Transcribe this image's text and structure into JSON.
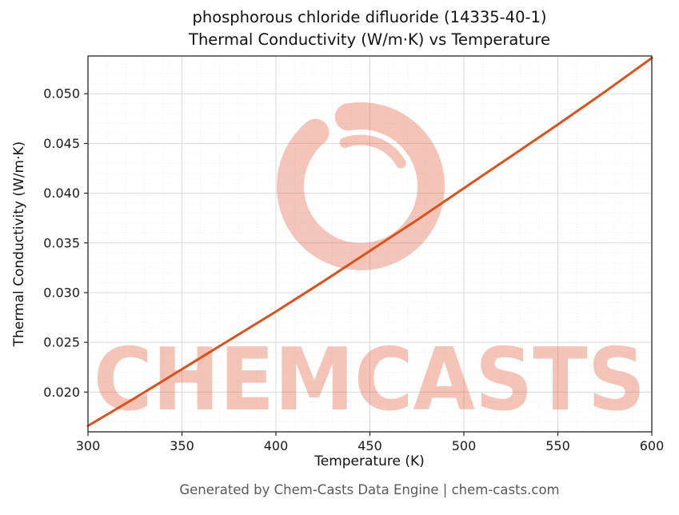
{
  "page": {
    "title_line1": "phosphorous chloride difluoride (14335-40-1)",
    "title_line2": "Thermal Conductivity (W/m·K) vs Temperature",
    "footer": "Generated by Chem-Casts Data Engine | chem-casts.com"
  },
  "watermark": {
    "text": "CHEMCASTS",
    "color": "#e05a3a",
    "opacity": "0.35"
  },
  "chart_data": {
    "type": "line",
    "title": "phosphorous chloride difluoride (14335-40-1) Thermal Conductivity (W/m·K) vs Temperature",
    "xlabel": "Temperature (K)",
    "ylabel": "Thermal Conductivity (W/m·K)",
    "xlim": [
      300,
      600
    ],
    "ylim": [
      0.016,
      0.0538
    ],
    "xticks": [
      300,
      350,
      400,
      450,
      500,
      550,
      600
    ],
    "yticks": [
      0.02,
      0.025,
      0.03,
      0.035,
      0.04,
      0.045,
      0.05
    ],
    "grid": true,
    "legend": false,
    "line_color": "#d9531e",
    "line_width": 3,
    "series": [
      {
        "name": "thermal-conductivity",
        "x": [
          300,
          325,
          350,
          375,
          400,
          425,
          450,
          475,
          500,
          525,
          550,
          575,
          600
        ],
        "y": [
          0.0166,
          0.0194,
          0.0223,
          0.0252,
          0.0281,
          0.0311,
          0.0342,
          0.0373,
          0.0405,
          0.0437,
          0.0469,
          0.0502,
          0.0536
        ]
      }
    ]
  }
}
